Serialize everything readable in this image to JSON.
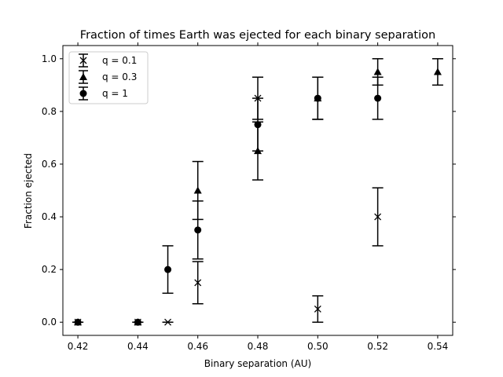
{
  "chart_data": {
    "type": "scatter",
    "title": "Fraction of times Earth was ejected for each binary separation",
    "xlabel": "Binary separation (AU)",
    "ylabel": "Fraction ejected",
    "xlim": [
      0.415,
      0.545
    ],
    "ylim": [
      -0.05,
      1.05
    ],
    "xticks": [
      "0.42",
      "0.44",
      "0.46",
      "0.48",
      "0.50",
      "0.52",
      "0.54"
    ],
    "yticks": [
      "0.0",
      "0.2",
      "0.4",
      "0.6",
      "0.8",
      "1.0"
    ],
    "grid": false,
    "legend_position": "top-left",
    "series": [
      {
        "name": "q = 0.1",
        "marker": "x",
        "points": [
          {
            "x": 0.42,
            "y": 0.0,
            "err": 0.0
          },
          {
            "x": 0.44,
            "y": 0.0,
            "err": 0.0
          },
          {
            "x": 0.45,
            "y": 0.0,
            "err": 0.0
          },
          {
            "x": 0.46,
            "y": 0.15,
            "err": 0.08
          },
          {
            "x": 0.48,
            "y": 0.85,
            "err": 0.08
          },
          {
            "x": 0.5,
            "y": 0.05,
            "err": 0.05
          },
          {
            "x": 0.52,
            "y": 0.4,
            "err": 0.11
          }
        ]
      },
      {
        "name": "q = 0.3",
        "marker": "triangle",
        "points": [
          {
            "x": 0.42,
            "y": 0.0,
            "err": 0.0
          },
          {
            "x": 0.44,
            "y": 0.0,
            "err": 0.0
          },
          {
            "x": 0.46,
            "y": 0.5,
            "err": 0.11
          },
          {
            "x": 0.48,
            "y": 0.65,
            "err": 0.11
          },
          {
            "x": 0.5,
            "y": 0.85,
            "err": 0.08
          },
          {
            "x": 0.52,
            "y": 0.95,
            "err": 0.05
          },
          {
            "x": 0.54,
            "y": 0.95,
            "err": 0.05
          }
        ]
      },
      {
        "name": "q = 1",
        "marker": "circle",
        "points": [
          {
            "x": 0.42,
            "y": 0.0,
            "err": 0.0
          },
          {
            "x": 0.44,
            "y": 0.0,
            "err": 0.0
          },
          {
            "x": 0.45,
            "y": 0.2,
            "err": 0.09
          },
          {
            "x": 0.46,
            "y": 0.35,
            "err": 0.11
          },
          {
            "x": 0.48,
            "y": 0.75,
            "err": 0.1
          },
          {
            "x": 0.5,
            "y": 0.85,
            "err": 0.08
          },
          {
            "x": 0.52,
            "y": 0.85,
            "err": 0.08
          }
        ]
      }
    ]
  }
}
